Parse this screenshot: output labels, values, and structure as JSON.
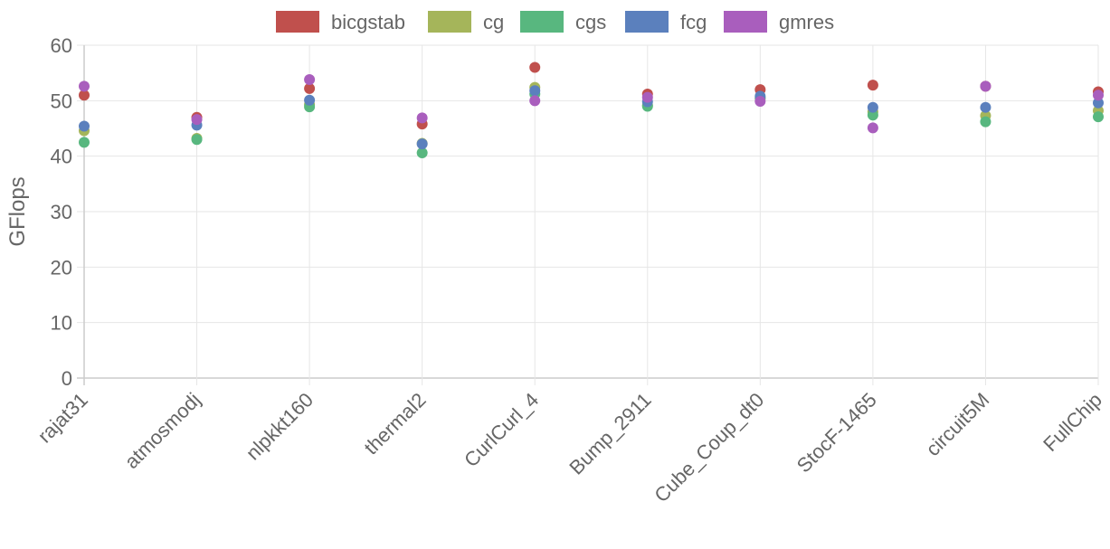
{
  "chart_data": {
    "type": "scatter",
    "ylabel": "GFlops",
    "xlabel": "",
    "ylim": [
      0,
      60
    ],
    "yticks": [
      0,
      10,
      20,
      30,
      40,
      50,
      60
    ],
    "grid": true,
    "legend_position": "top",
    "categories": [
      "rajat31",
      "atmosmodj",
      "nlpkkt160",
      "thermal2",
      "CurlCurl_4",
      "Bump_2911",
      "Cube_Coup_dt0",
      "StocF-1465",
      "circuit5M",
      "FullChip"
    ],
    "series": [
      {
        "name": "bicgstab",
        "color": "#c0504d",
        "values": [
          51.0,
          47.0,
          52.2,
          45.8,
          56.0,
          51.2,
          52.0,
          52.8,
          52.6,
          51.6
        ]
      },
      {
        "name": "cg",
        "color": "#a5b55a",
        "values": [
          44.6,
          43.2,
          49.3,
          42.3,
          52.4,
          49.2,
          50.5,
          48.0,
          47.3,
          48.2
        ]
      },
      {
        "name": "cgs",
        "color": "#58b77f",
        "values": [
          42.5,
          43.0,
          48.9,
          40.6,
          51.2,
          49.0,
          50.4,
          47.4,
          46.2,
          47.1
        ]
      },
      {
        "name": "fcg",
        "color": "#5b80bd",
        "values": [
          45.4,
          45.6,
          50.1,
          42.2,
          51.8,
          49.8,
          50.8,
          48.8,
          48.8,
          49.6
        ]
      },
      {
        "name": "gmres",
        "color": "#a95ebd",
        "values": [
          52.6,
          46.6,
          53.8,
          46.9,
          50.0,
          50.6,
          49.9,
          45.1,
          52.6,
          51.0
        ]
      }
    ]
  }
}
